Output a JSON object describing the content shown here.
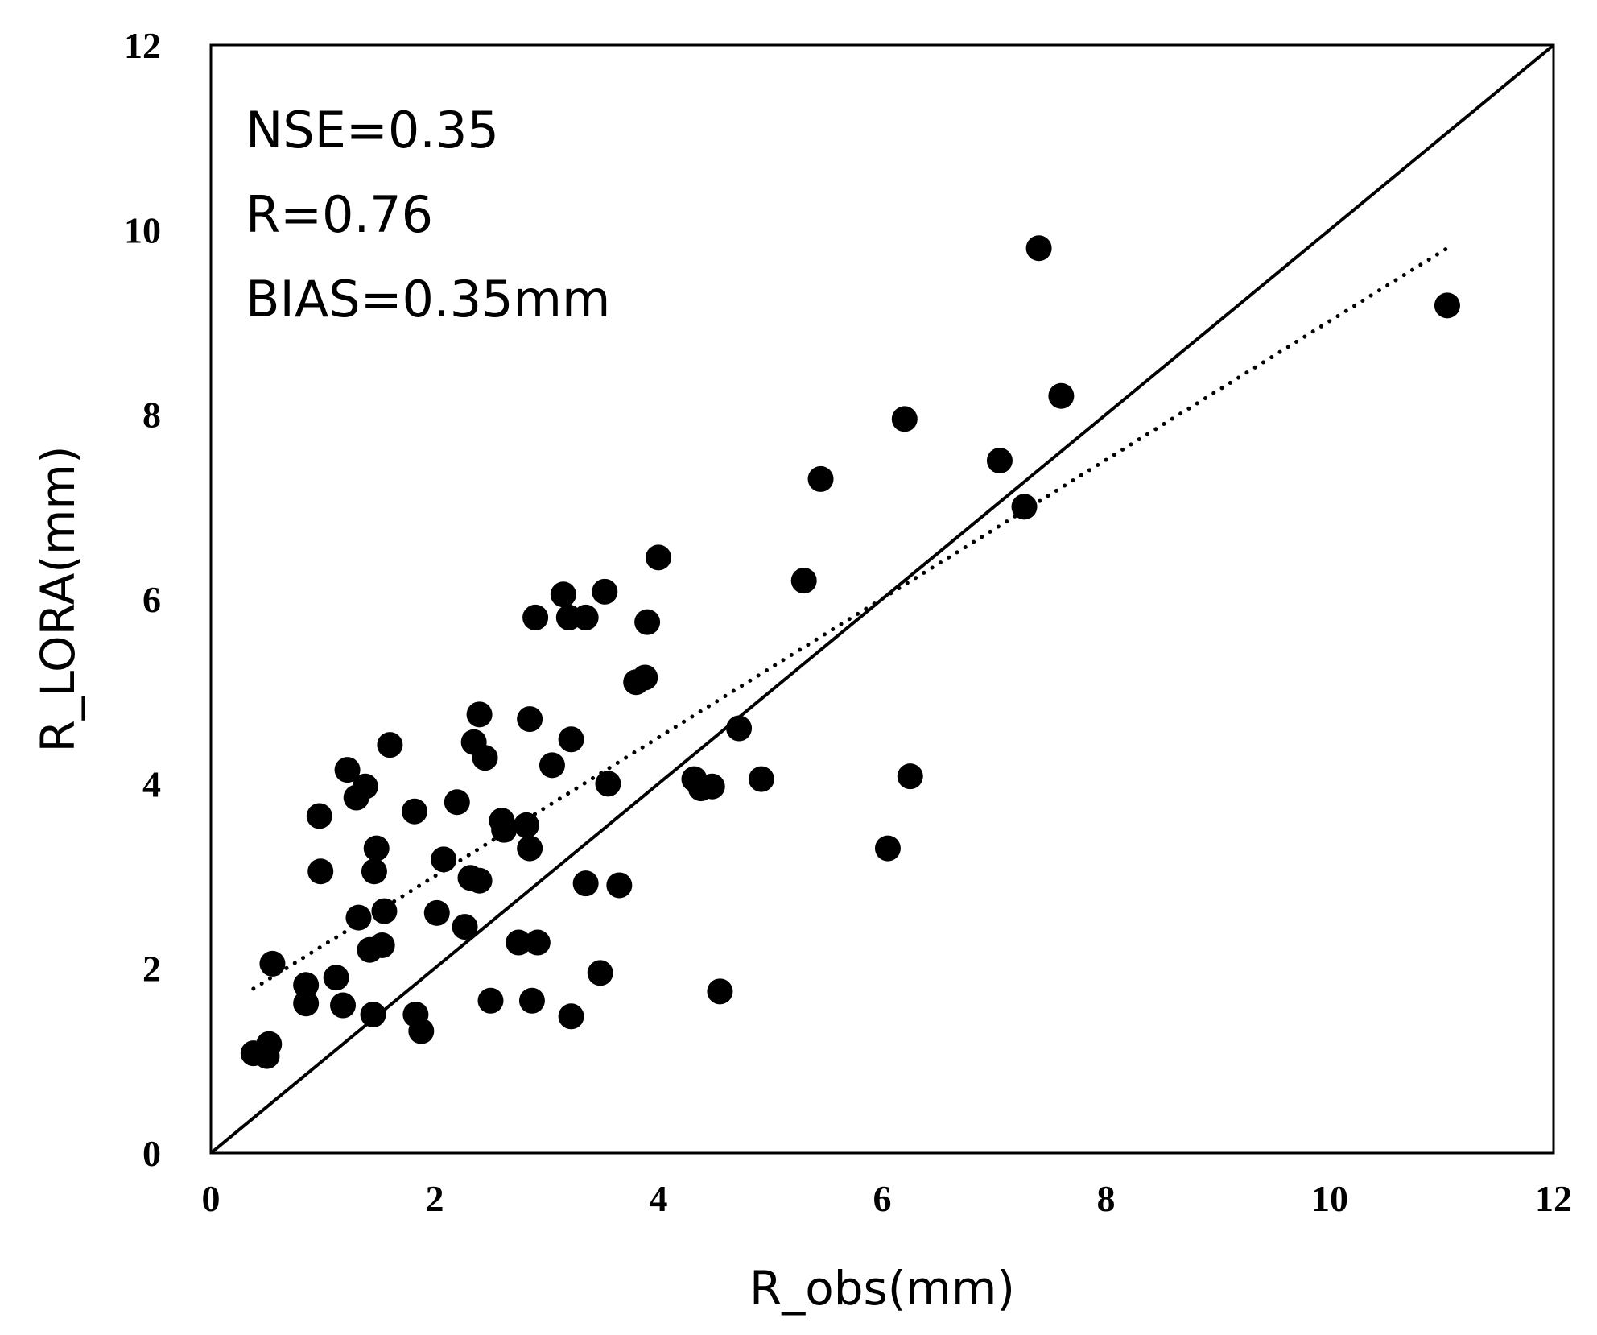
{
  "chart_data": {
    "type": "scatter",
    "title": "",
    "xlabel": "R_obs(mm)",
    "ylabel": "R_LORA(mm)",
    "xlim": [
      0,
      12
    ],
    "ylim": [
      0,
      12
    ],
    "xticks": [
      0,
      2,
      4,
      6,
      8,
      10,
      12
    ],
    "yticks": [
      0,
      2,
      4,
      6,
      8,
      10,
      12
    ],
    "grid": false,
    "stats": {
      "nse": "NSE=0.35",
      "r": "R=0.76",
      "bias": "BIAS=0.35mm"
    },
    "reference_line": {
      "label": "1:1 line",
      "x": [
        0,
        12
      ],
      "y": [
        0,
        12
      ],
      "style": "solid"
    },
    "trend_line": {
      "label": "linear fit",
      "x": [
        0.38,
        11.05
      ],
      "y": [
        1.78,
        9.8
      ],
      "style": "dotted"
    },
    "series": [
      {
        "name": "observations",
        "points": [
          [
            0.38,
            1.08
          ],
          [
            0.5,
            1.05
          ],
          [
            0.52,
            1.18
          ],
          [
            0.55,
            2.05
          ],
          [
            0.85,
            1.62
          ],
          [
            0.85,
            1.82
          ],
          [
            0.97,
            3.65
          ],
          [
            0.98,
            3.05
          ],
          [
            1.12,
            1.9
          ],
          [
            1.18,
            1.6
          ],
          [
            1.22,
            4.15
          ],
          [
            1.3,
            3.85
          ],
          [
            1.32,
            2.55
          ],
          [
            1.38,
            3.97
          ],
          [
            1.42,
            2.2
          ],
          [
            1.45,
            1.5
          ],
          [
            1.46,
            3.05
          ],
          [
            1.48,
            3.3
          ],
          [
            1.53,
            2.25
          ],
          [
            1.55,
            2.62
          ],
          [
            1.6,
            4.42
          ],
          [
            1.82,
            3.7
          ],
          [
            1.83,
            1.5
          ],
          [
            1.88,
            1.32
          ],
          [
            2.02,
            2.6
          ],
          [
            2.08,
            3.18
          ],
          [
            2.2,
            3.8
          ],
          [
            2.27,
            2.45
          ],
          [
            2.32,
            2.98
          ],
          [
            2.35,
            4.45
          ],
          [
            2.4,
            4.75
          ],
          [
            2.4,
            2.95
          ],
          [
            2.45,
            4.28
          ],
          [
            2.5,
            1.65
          ],
          [
            2.6,
            3.6
          ],
          [
            2.62,
            3.5
          ],
          [
            2.75,
            2.28
          ],
          [
            2.82,
            3.55
          ],
          [
            2.85,
            3.3
          ],
          [
            2.85,
            4.7
          ],
          [
            2.87,
            1.65
          ],
          [
            2.9,
            5.8
          ],
          [
            2.92,
            2.28
          ],
          [
            3.05,
            4.2
          ],
          [
            3.15,
            6.05
          ],
          [
            3.2,
            5.8
          ],
          [
            3.22,
            4.48
          ],
          [
            3.22,
            1.48
          ],
          [
            3.35,
            5.8
          ],
          [
            3.35,
            2.92
          ],
          [
            3.48,
            1.95
          ],
          [
            3.52,
            6.08
          ],
          [
            3.55,
            4.0
          ],
          [
            3.65,
            2.9
          ],
          [
            3.8,
            5.1
          ],
          [
            3.88,
            5.15
          ],
          [
            3.9,
            5.75
          ],
          [
            4.0,
            6.45
          ],
          [
            4.32,
            4.05
          ],
          [
            4.38,
            3.95
          ],
          [
            4.48,
            3.97
          ],
          [
            4.55,
            1.75
          ],
          [
            4.72,
            4.6
          ],
          [
            4.92,
            4.05
          ],
          [
            5.3,
            6.2
          ],
          [
            5.45,
            7.3
          ],
          [
            6.05,
            3.3
          ],
          [
            6.2,
            7.95
          ],
          [
            6.25,
            4.08
          ],
          [
            7.05,
            7.5
          ],
          [
            7.27,
            7.0
          ],
          [
            7.4,
            9.8
          ],
          [
            7.6,
            8.2
          ],
          [
            11.05,
            9.18
          ]
        ]
      }
    ]
  }
}
